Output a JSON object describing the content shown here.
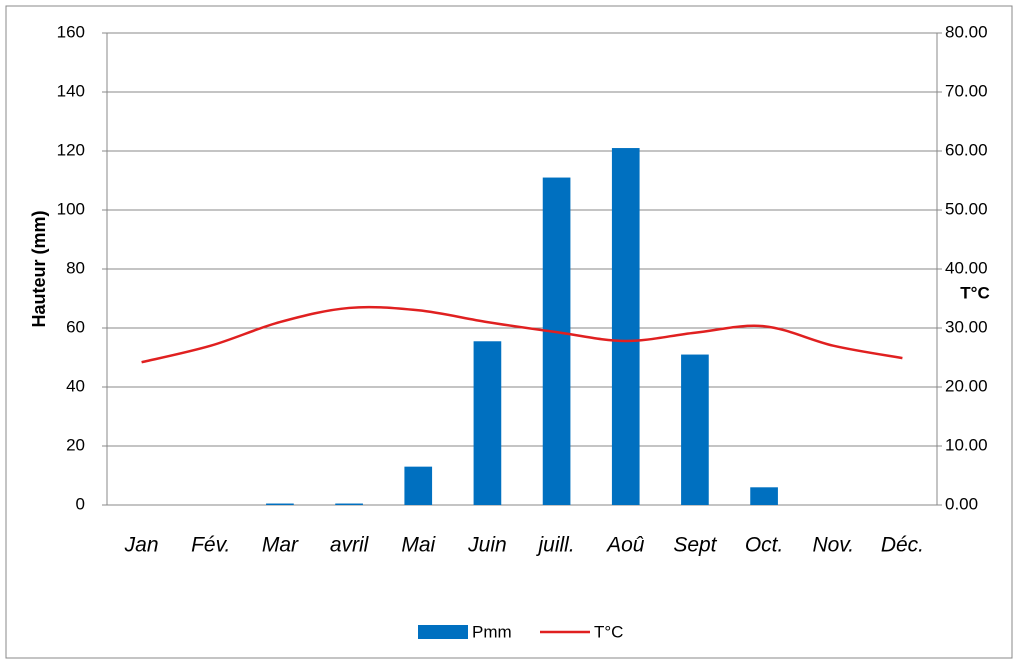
{
  "chart_data": {
    "type": "bar-line",
    "categories": [
      "Jan",
      "Fév.",
      "Mar",
      "avril",
      "Mai",
      "Juin",
      "juill.",
      "Aoû",
      "Sept",
      "Oct.",
      "Nov.",
      "Déc."
    ],
    "series": [
      {
        "name": "Pmm",
        "type": "bar",
        "color": "#0070c0",
        "values": [
          0,
          0,
          0.5,
          0.5,
          13,
          55.5,
          111,
          121,
          51,
          6,
          0,
          0
        ]
      },
      {
        "name": "T°C",
        "type": "line",
        "axis": "y2",
        "color": "#e02020",
        "values": [
          24.2,
          27,
          31,
          33.4,
          33,
          31,
          29.3,
          27.8,
          29.2,
          30.3,
          27,
          24.9
        ]
      }
    ],
    "ylabel": "Hauteur (mm)",
    "y2label": "T°C",
    "ylim": [
      0,
      160
    ],
    "yticks": [
      0,
      20,
      40,
      60,
      80,
      100,
      120,
      140,
      160
    ],
    "y2lim": [
      0,
      80
    ],
    "y2ticks": [
      {
        "value": 0,
        "label": "0.00"
      },
      {
        "value": 10,
        "label": "10.00"
      },
      {
        "value": 20,
        "label": "20.00"
      },
      {
        "value": 30,
        "label": "30.00"
      },
      {
        "value": 40,
        "label": "40.00"
      },
      {
        "value": 50,
        "label": "50.00"
      },
      {
        "value": 60,
        "label": "60.00"
      },
      {
        "value": 70,
        "label": "70.00"
      },
      {
        "value": 80,
        "label": "80.00"
      }
    ],
    "grid": true,
    "legend": "bottom"
  }
}
